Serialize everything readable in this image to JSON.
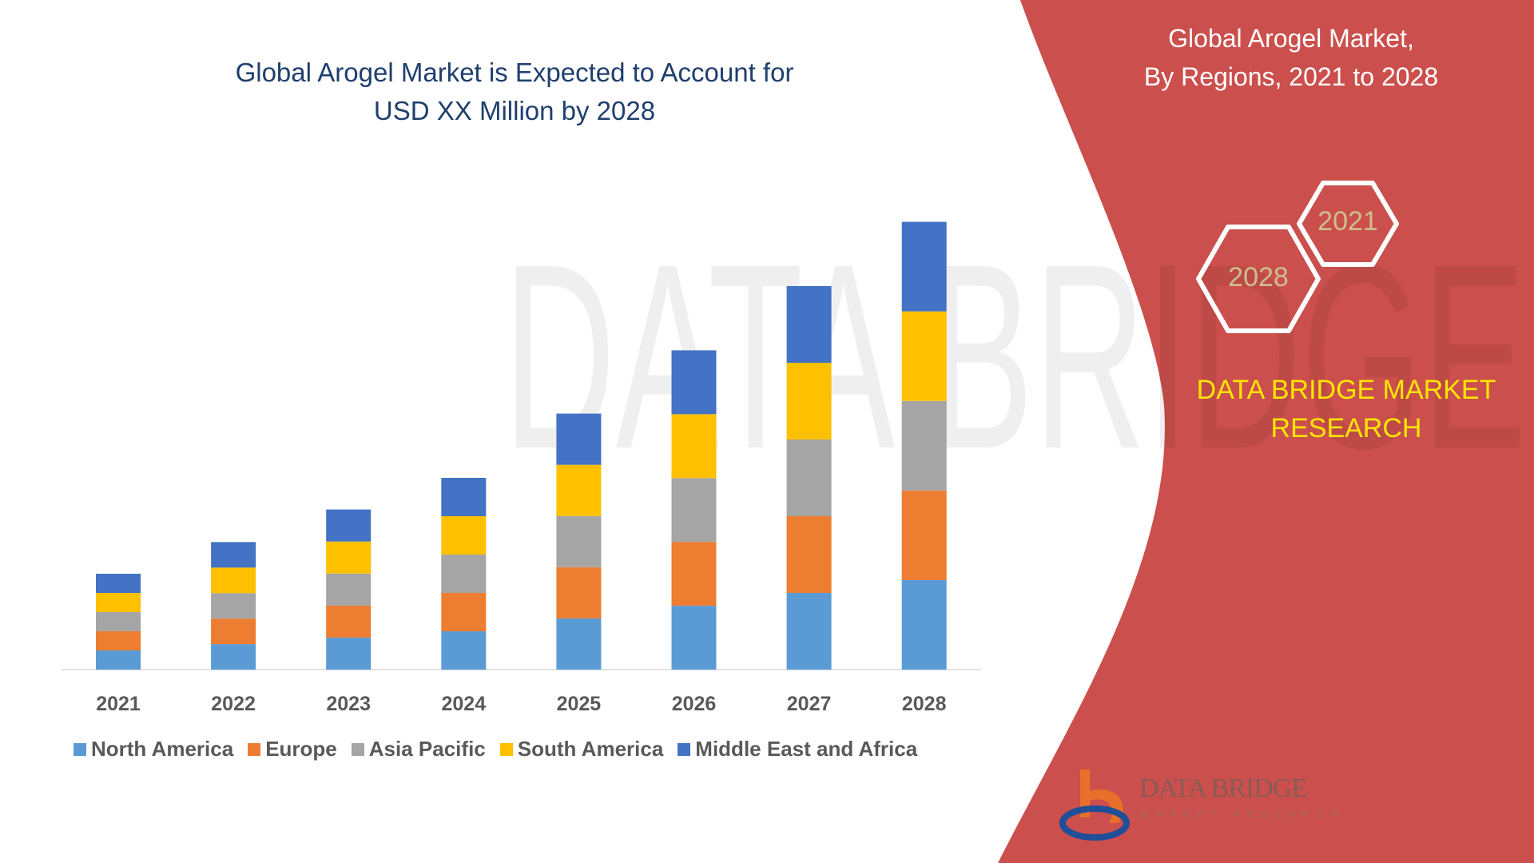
{
  "chart_data": {
    "type": "bar",
    "stacked": true,
    "title": "Global Arogel Market is Expected to Account for USD XX Million by 2028",
    "title_lines": [
      "Global Arogel Market is Expected to Account for",
      "USD XX Million by 2028"
    ],
    "xlabel": "",
    "ylabel": "",
    "categories": [
      "2021",
      "2022",
      "2023",
      "2024",
      "2025",
      "2026",
      "2027",
      "2028"
    ],
    "series": [
      {
        "name": "North America",
        "color": "#5b9bd5",
        "values": [
          1.0,
          1.33,
          1.67,
          2.0,
          2.67,
          3.33,
          4.0,
          4.67
        ]
      },
      {
        "name": "Europe",
        "color": "#ed7d31",
        "values": [
          1.0,
          1.33,
          1.67,
          2.0,
          2.67,
          3.33,
          4.0,
          4.67
        ]
      },
      {
        "name": "Asia Pacific",
        "color": "#a5a5a5",
        "values": [
          1.0,
          1.33,
          1.67,
          2.0,
          2.67,
          3.33,
          4.0,
          4.67
        ]
      },
      {
        "name": "South America",
        "color": "#ffc000",
        "values": [
          1.0,
          1.33,
          1.67,
          2.0,
          2.67,
          3.33,
          4.0,
          4.67
        ]
      },
      {
        "name": "Middle East and Africa",
        "color": "#4472c4",
        "values": [
          1.0,
          1.33,
          1.67,
          2.0,
          2.67,
          3.33,
          4.0,
          4.67
        ]
      }
    ],
    "ylim": [
      0,
      24
    ],
    "grid": false,
    "y_axis_visible": false,
    "legend_position": "bottom"
  },
  "side_panel": {
    "title_lines": [
      "Global Arogel Market,",
      "By Regions, 2021 to 2028"
    ],
    "hex_start": "2021",
    "hex_end": "2028",
    "brand_lines": [
      "DATA BRIDGE MARKET",
      "RESEARCH"
    ],
    "panel_color": "#cb4f4c",
    "brand_color": "#ffe500"
  },
  "logo": {
    "name": "DATA BRIDGE",
    "tagline": "MARKET RESEARCH"
  }
}
